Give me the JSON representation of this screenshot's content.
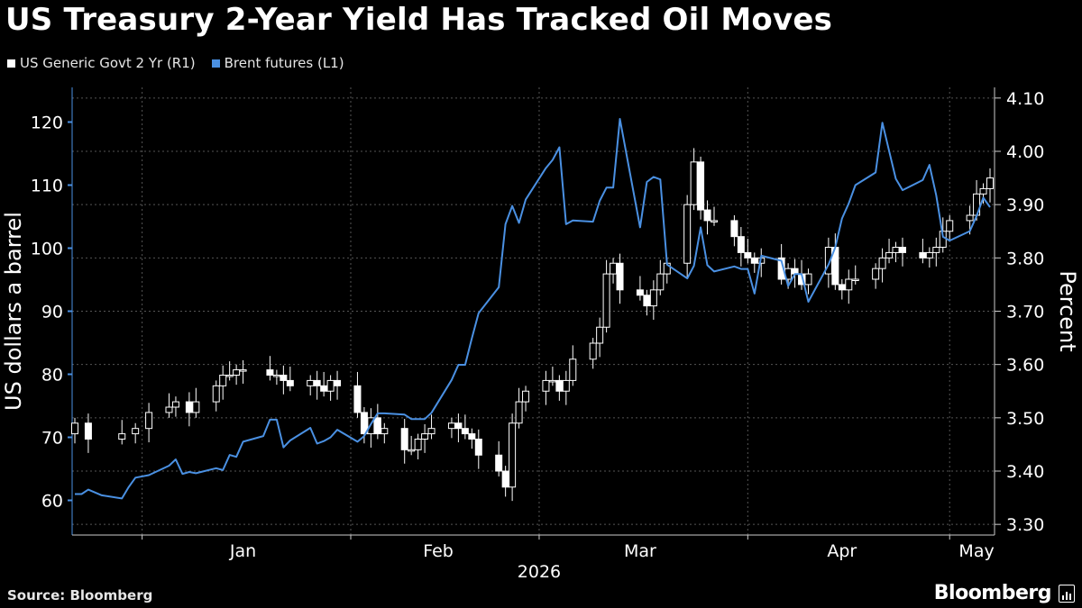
{
  "chart_data": {
    "type": "line+candlestick",
    "title": "US Treasury 2-Year Yield Has Tracked Oil Moves",
    "legend": [
      {
        "name": "US Generic Govt 2 Yr (R1)",
        "color": "#ffffff"
      },
      {
        "name": "Brent futures (L1)",
        "color": "#4a90e2"
      }
    ],
    "y_left": {
      "label": "US dollars a barrel",
      "ticks": [
        60,
        70,
        80,
        90,
        100,
        110,
        120
      ],
      "range": [
        54.5,
        125.5
      ]
    },
    "y_right": {
      "label": "Percent",
      "ticks": [
        "3.30",
        "3.40",
        "3.50",
        "3.60",
        "3.70",
        "3.80",
        "3.90",
        "4.00",
        "4.10"
      ],
      "range": [
        3.28,
        4.12
      ]
    },
    "x_axis": {
      "months": [
        "Jan",
        "Feb",
        "Mar",
        "Apr",
        "May"
      ],
      "year": "2026",
      "start": "2025-12-22",
      "end": "2026-05-07"
    },
    "brent_series": {
      "name": "Brent futures (L1)",
      "x": [
        "2025-12-22",
        "2025-12-23",
        "2025-12-24",
        "2025-12-26",
        "2025-12-29",
        "2025-12-30",
        "2025-12-31",
        "2026-01-02",
        "2026-01-05",
        "2026-01-06",
        "2026-01-07",
        "2026-01-08",
        "2026-01-09",
        "2026-01-12",
        "2026-01-13",
        "2026-01-14",
        "2026-01-15",
        "2026-01-16",
        "2026-01-19",
        "2026-01-20",
        "2026-01-21",
        "2026-01-22",
        "2026-01-23",
        "2026-01-26",
        "2026-01-27",
        "2026-01-28",
        "2026-01-29",
        "2026-01-30",
        "2026-02-02",
        "2026-02-03",
        "2026-02-04",
        "2026-02-05",
        "2026-02-06",
        "2026-02-09",
        "2026-02-10",
        "2026-02-11",
        "2026-02-12",
        "2026-02-13",
        "2026-02-16",
        "2026-02-17",
        "2026-02-18",
        "2026-02-19",
        "2026-02-20",
        "2026-02-23",
        "2026-02-24",
        "2026-02-25",
        "2026-02-26",
        "2026-02-27",
        "2026-03-02",
        "2026-03-03",
        "2026-03-04",
        "2026-03-05",
        "2026-03-06",
        "2026-03-09",
        "2026-03-10",
        "2026-03-11",
        "2026-03-12",
        "2026-03-13",
        "2026-03-16",
        "2026-03-17",
        "2026-03-18",
        "2026-03-19",
        "2026-03-20",
        "2026-03-23",
        "2026-03-24",
        "2026-03-25",
        "2026-03-26",
        "2026-03-27",
        "2026-03-30",
        "2026-03-31",
        "2026-04-01",
        "2026-04-02",
        "2026-04-03",
        "2026-04-06",
        "2026-04-07",
        "2026-04-08",
        "2026-04-09",
        "2026-04-10",
        "2026-04-13",
        "2026-04-14",
        "2026-04-15",
        "2026-04-16",
        "2026-04-17",
        "2026-04-20",
        "2026-04-21",
        "2026-04-22",
        "2026-04-23",
        "2026-04-24",
        "2026-04-27",
        "2026-04-28",
        "2026-04-29",
        "2026-04-30",
        "2026-05-01",
        "2026-05-04",
        "2026-05-05",
        "2026-05-06",
        "2026-05-07"
      ],
      "values": [
        61.0,
        61.0,
        61.7,
        60.8,
        60.3,
        62.1,
        63.6,
        64.0,
        65.5,
        66.5,
        64.2,
        64.5,
        64.3,
        65.1,
        64.8,
        67.2,
        66.9,
        69.3,
        70.2,
        72.8,
        72.8,
        68.4,
        69.5,
        71.5,
        69.0,
        69.4,
        70.0,
        71.2,
        69.3,
        70.2,
        72.1,
        73.8,
        73.8,
        73.6,
        72.9,
        72.9,
        72.9,
        73.9,
        79.1,
        81.5,
        81.5,
        85.7,
        89.7,
        93.8,
        103.8,
        106.7,
        104.0,
        107.7,
        112.7,
        114.0,
        116.0,
        103.8,
        104.4,
        104.2,
        107.5,
        109.6,
        109.6,
        120.5,
        103.3,
        110.5,
        111.3,
        110.9,
        97.4,
        95.2,
        97.2,
        103.3,
        97.3,
        96.3,
        97.1,
        96.7,
        96.7,
        92.8,
        98.8,
        98.0,
        94.0,
        95.9,
        95.9,
        91.5,
        97.4,
        100.1,
        104.7,
        107.1,
        110.0,
        112.0,
        119.9,
        115.4,
        111.0,
        109.2,
        110.8,
        113.2,
        108.4,
        101.8,
        101.2,
        102.7,
        105.1,
        108.0,
        106.5
      ]
    },
    "yield_series": {
      "name": "US Generic Govt 2 Yr (R1)",
      "x": [
        "2025-12-22",
        "2025-12-24",
        "2025-12-29",
        "2025-12-31",
        "2026-01-02",
        "2026-01-05",
        "2026-01-06",
        "2026-01-08",
        "2026-01-09",
        "2026-01-12",
        "2026-01-13",
        "2026-01-14",
        "2026-01-15",
        "2026-01-16",
        "2026-01-20",
        "2026-01-21",
        "2026-01-22",
        "2026-01-23",
        "2026-01-26",
        "2026-01-27",
        "2026-01-28",
        "2026-01-29",
        "2026-01-30",
        "2026-02-02",
        "2026-02-03",
        "2026-02-04",
        "2026-02-05",
        "2026-02-06",
        "2026-02-09",
        "2026-02-10",
        "2026-02-11",
        "2026-02-12",
        "2026-02-13",
        "2026-02-16",
        "2026-02-17",
        "2026-02-18",
        "2026-02-19",
        "2026-02-20",
        "2026-02-23",
        "2026-02-24",
        "2026-02-25",
        "2026-02-26",
        "2026-02-27",
        "2026-03-02",
        "2026-03-03",
        "2026-03-04",
        "2026-03-05",
        "2026-03-06",
        "2026-03-09",
        "2026-03-10",
        "2026-03-11",
        "2026-03-12",
        "2026-03-13",
        "2026-03-16",
        "2026-03-17",
        "2026-03-18",
        "2026-03-19",
        "2026-03-20",
        "2026-03-23",
        "2026-03-24",
        "2026-03-25",
        "2026-03-26",
        "2026-03-27",
        "2026-03-30",
        "2026-03-31",
        "2026-04-01",
        "2026-04-02",
        "2026-04-03",
        "2026-04-06",
        "2026-04-07",
        "2026-04-08",
        "2026-04-09",
        "2026-04-10",
        "2026-04-13",
        "2026-04-14",
        "2026-04-15",
        "2026-04-16",
        "2026-04-17",
        "2026-04-20",
        "2026-04-21",
        "2026-04-22",
        "2026-04-23",
        "2026-04-24",
        "2026-04-27",
        "2026-04-28",
        "2026-04-29",
        "2026-04-30",
        "2026-05-01",
        "2026-05-04",
        "2026-05-05",
        "2026-05-06",
        "2026-05-07"
      ],
      "open": [
        3.47,
        3.49,
        3.46,
        3.47,
        3.48,
        3.51,
        3.52,
        3.53,
        3.51,
        3.53,
        3.56,
        3.58,
        3.58,
        3.59,
        3.59,
        3.58,
        3.58,
        3.57,
        3.56,
        3.57,
        3.56,
        3.55,
        3.57,
        3.56,
        3.51,
        3.47,
        3.5,
        3.47,
        3.48,
        3.44,
        3.44,
        3.46,
        3.47,
        3.48,
        3.49,
        3.48,
        3.47,
        3.46,
        3.43,
        3.4,
        3.37,
        3.49,
        3.53,
        3.55,
        3.57,
        3.57,
        3.55,
        3.57,
        3.61,
        3.64,
        3.67,
        3.77,
        3.79,
        3.74,
        3.73,
        3.71,
        3.74,
        3.77,
        3.79,
        3.9,
        3.98,
        3.89,
        3.87,
        3.87,
        3.84,
        3.81,
        3.8,
        3.79,
        3.8,
        3.76,
        3.78,
        3.77,
        3.75,
        3.77,
        3.82,
        3.75,
        3.74,
        3.76,
        3.76,
        3.78,
        3.8,
        3.81,
        3.82,
        3.81,
        3.8,
        3.81,
        3.82,
        3.85,
        3.87,
        3.88,
        3.92,
        3.93
      ]
    },
    "annotations": []
  },
  "header": {
    "title": "US Treasury 2-Year Yield Has Tracked Oil Moves",
    "legend_yield": "US Generic Govt 2 Yr (R1)",
    "legend_brent": "Brent futures (L1)"
  },
  "footer": {
    "source": "Source: Bloomberg",
    "brand": "Bloomberg"
  },
  "colors": {
    "background": "#000000",
    "brent": "#4a90e2",
    "candle": "#ffffff",
    "grid": "#5a5a5a"
  }
}
